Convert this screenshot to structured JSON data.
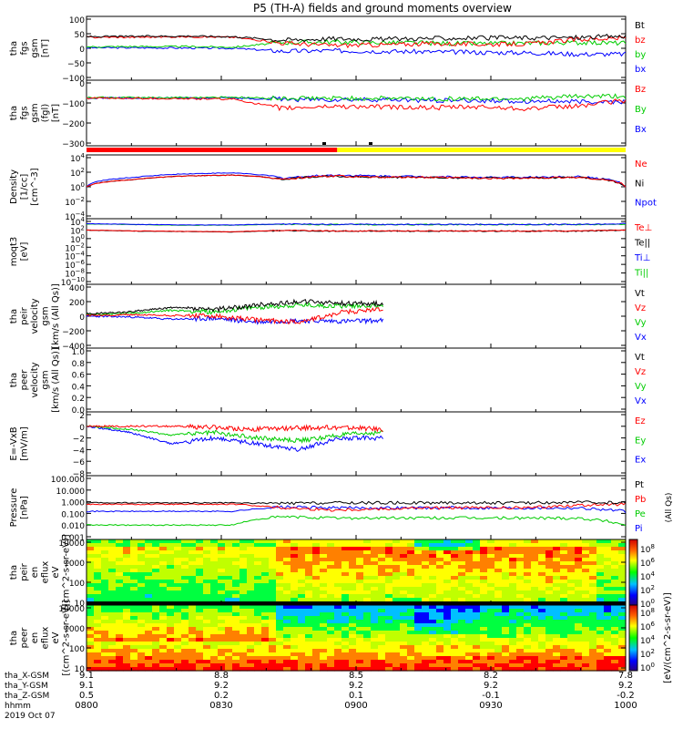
{
  "title": "P5 (TH-A) fields and ground moments overview",
  "colors": {
    "black": "#000000",
    "red": "#ff0000",
    "green": "#00cc00",
    "blue": "#0000ff",
    "yellow": "#ffff00"
  },
  "bars": {
    "red_fraction": 0.465
  },
  "x_ticks": [
    {
      "x": "9.1",
      "y": "9.1",
      "z": "0.5",
      "hhmm": "0800"
    },
    {
      "x": "8.8",
      "y": "9.2",
      "z": "0.2",
      "hhmm": "0830"
    },
    {
      "x": "8.5",
      "y": "9.2",
      "z": "0.1",
      "hhmm": "0900"
    },
    {
      "x": "8.2",
      "y": "9.2",
      "z": "-0.1",
      "hhmm": "0930"
    },
    {
      "x": "7.8",
      "y": "9.2",
      "z": "-0.2",
      "hhmm": "1000"
    }
  ],
  "x_axis_labels": [
    "tha_X-GSM",
    "tha_Y-GSM",
    "tha_Z-GSM",
    "hhmm",
    "2019 Oct 07"
  ],
  "colorbar": {
    "label": "[eV/(cm^2-s-sr-eV)]",
    "top_labels": [
      "10^8",
      "10^6",
      "10^4",
      "10^2",
      "10^0"
    ],
    "bottom_labels": [
      "10^8",
      "10^6",
      "10^4",
      "10^2",
      "10^0"
    ]
  },
  "chart_data": [
    {
      "type": "line",
      "ylabel": [
        "tha",
        "fgs",
        "gsm",
        "[nT]"
      ],
      "ylim": [
        -100,
        100
      ],
      "yticks": [
        "100",
        "50",
        "0",
        "−50",
        "−100"
      ],
      "legend": [
        "Bt",
        "bz",
        "by",
        "bx"
      ],
      "series": [
        {
          "name": "Bt",
          "values": [
            40,
            41,
            42,
            40,
            28,
            33,
            31,
            34,
            35,
            36,
            37,
            42
          ]
        },
        {
          "name": "bz",
          "values": [
            38,
            38,
            40,
            38,
            18,
            10,
            12,
            16,
            14,
            15,
            30,
            35
          ]
        },
        {
          "name": "by",
          "values": [
            5,
            6,
            6,
            4,
            20,
            22,
            20,
            18,
            16,
            18,
            20,
            18
          ]
        },
        {
          "name": "bx",
          "values": [
            2,
            2,
            1,
            0,
            -10,
            -8,
            -10,
            -12,
            -14,
            -15,
            -20,
            -20
          ]
        }
      ]
    },
    {
      "type": "line",
      "ylabel": [
        "tha",
        "fgs",
        "gsm",
        "(fgl)",
        "[nT]"
      ],
      "ylim": [
        -300,
        100
      ],
      "yticks": [
        "0",
        "−100",
        "−200",
        "−300"
      ],
      "legend": [
        "Bz",
        "By",
        "Bx"
      ],
      "series": [
        {
          "name": "Bz",
          "values": [
            -2,
            -2,
            -5,
            -8,
            -70,
            -55,
            -60,
            -65,
            -60,
            -70,
            -55,
            -15
          ]
        },
        {
          "name": "By",
          "values": [
            2,
            2,
            3,
            5,
            -5,
            -2,
            -3,
            -5,
            -5,
            -4,
            10,
            10
          ]
        },
        {
          "name": "Bx",
          "values": [
            0,
            0,
            0,
            0,
            -10,
            -12,
            -12,
            -15,
            -18,
            -20,
            -25,
            -25
          ]
        }
      ]
    },
    {
      "type": "line",
      "ylabel": [
        "Density",
        "[1/cc]",
        "[cm^-3]"
      ],
      "yscale": "log",
      "yticks": [
        "10^4",
        "10^2",
        "10^0",
        "10^-2",
        "10^-4"
      ],
      "legend": [
        "Ne",
        "Ni",
        "Npot"
      ],
      "series": [
        {
          "name": "Ne",
          "values": [
            1,
            10,
            30,
            40,
            10,
            30,
            20,
            20,
            15,
            15,
            20,
            1
          ]
        },
        {
          "name": "Ni",
          "values": [
            1,
            10,
            30,
            40,
            10,
            30,
            20,
            20,
            15,
            15,
            20,
            1
          ]
        },
        {
          "name": "Npot",
          "values": [
            1,
            20,
            60,
            80,
            15,
            40,
            30,
            25,
            20,
            20,
            25,
            1
          ]
        }
      ]
    },
    {
      "type": "line",
      "ylabel": [
        "moqt3",
        "[eV]"
      ],
      "yscale": "log",
      "yticks": [
        "10^4",
        "10^2",
        "10^0",
        "10^-2",
        "10^-4",
        "10^-6",
        "10^-8",
        "10^-10"
      ],
      "legend": [
        "Te⊥",
        "Te||",
        "Ti⊥",
        "Ti||"
      ],
      "series": [
        {
          "name": "Te⊥",
          "values": [
            100,
            60,
            50,
            40,
            80,
            60,
            60,
            60,
            60,
            60,
            60,
            100
          ]
        },
        {
          "name": "Te||",
          "values": [
            90,
            55,
            45,
            35,
            70,
            55,
            55,
            55,
            55,
            55,
            55,
            90
          ]
        },
        {
          "name": "Ti⊥",
          "values": [
            3000,
            2000,
            1500,
            1500,
            2500,
            2000,
            2000,
            2000,
            2000,
            2000,
            2000,
            3000
          ]
        },
        {
          "name": "Ti||",
          "values": [
            2500,
            1800,
            1300,
            1300,
            2200,
            1800,
            1800,
            1800,
            1800,
            1800,
            1800,
            2500
          ]
        }
      ]
    },
    {
      "type": "line",
      "ylabel": [
        "tha",
        "peir",
        "velocity",
        "gsm",
        "[km/s (All Qs)]"
      ],
      "ylim": [
        -400,
        400
      ],
      "yticks": [
        "400",
        "200",
        "0",
        "−200",
        "−400"
      ],
      "legend": [
        "Vt",
        "Vz",
        "Vy",
        "Vx"
      ],
      "series": [
        {
          "name": "Vt",
          "values": [
            30,
            60,
            120,
            90,
            150,
            200,
            180,
            170
          ]
        },
        {
          "name": "Vz",
          "values": [
            10,
            20,
            10,
            0,
            -50,
            -80,
            50,
            100
          ]
        },
        {
          "name": "Vy",
          "values": [
            20,
            40,
            80,
            60,
            120,
            150,
            140,
            150
          ]
        },
        {
          "name": "Vx",
          "values": [
            0,
            -10,
            -40,
            -30,
            -80,
            -60,
            -70,
            -60
          ]
        }
      ]
    },
    {
      "type": "line",
      "ylabel": [
        "tha",
        "peer",
        "velocity",
        "gsm",
        "[km/s (All Qs)]"
      ],
      "ylim": [
        0,
        1
      ],
      "yticks": [
        "1.0",
        "0.8",
        "0.6",
        "0.4",
        "0.2",
        "0.0"
      ],
      "legend": [
        "Vt",
        "Vz",
        "Vy",
        "Vx"
      ],
      "series": []
    },
    {
      "type": "line",
      "ylabel": [
        "E=-VxB",
        "[mV/m]"
      ],
      "ylim": [
        -8,
        2
      ],
      "yticks": [
        "2",
        "0",
        "−2",
        "−4",
        "−6",
        "−8"
      ],
      "legend": [
        "Ez",
        "Ey",
        "Ex"
      ],
      "series": [
        {
          "name": "Ez",
          "values": [
            0,
            0,
            0,
            -0.2,
            -0.5,
            -0.3,
            -0.2,
            -0.5
          ]
        },
        {
          "name": "Ey",
          "values": [
            0,
            -0.5,
            -1.5,
            -1,
            -2,
            -2.5,
            -1.5,
            -1
          ]
        },
        {
          "name": "Ex",
          "values": [
            0,
            -1,
            -3,
            -2,
            -3,
            -4,
            -2,
            -2
          ]
        }
      ]
    },
    {
      "type": "line",
      "ylabel": [
        "Pressure",
        "[nPa]"
      ],
      "yscale": "log",
      "ylim": [
        0.001,
        100
      ],
      "yticks": [
        "100.000",
        "10.000",
        "1.000",
        "0.100",
        "0.010",
        "0.001"
      ],
      "legend": [
        "Pt",
        "Pb",
        "Pe",
        "Pi"
      ],
      "extra_right_label": "(All Qs)",
      "series": [
        {
          "name": "Pt",
          "values": [
            0.8,
            0.8,
            0.8,
            0.8,
            0.7,
            0.8,
            0.8,
            0.8,
            0.8,
            0.8,
            0.9,
            0.8
          ]
        },
        {
          "name": "Pb",
          "values": [
            0.6,
            0.6,
            0.6,
            0.6,
            0.3,
            0.2,
            0.25,
            0.3,
            0.3,
            0.3,
            0.5,
            0.6
          ]
        },
        {
          "name": "Pe",
          "values": [
            0.01,
            0.01,
            0.01,
            0.01,
            0.05,
            0.04,
            0.04,
            0.04,
            0.04,
            0.04,
            0.04,
            0.01
          ]
        },
        {
          "name": "Pi",
          "values": [
            0.15,
            0.15,
            0.15,
            0.15,
            0.35,
            0.3,
            0.3,
            0.3,
            0.3,
            0.3,
            0.3,
            0.15
          ]
        }
      ]
    },
    {
      "type": "heatmap",
      "ylabel": [
        "tha",
        "peir",
        "en",
        "eflux",
        "eV",
        "[(cm^2-s-sr-eV)]"
      ],
      "yscale": "log",
      "yticks": [
        "10000",
        "1000",
        "100",
        "10"
      ]
    },
    {
      "type": "heatmap",
      "ylabel": [
        "tha",
        "peer",
        "en",
        "eflux",
        "eV",
        "[(cm^2-s-sr-eV)]"
      ],
      "yscale": "log",
      "yticks": [
        "10000",
        "1000",
        "100",
        "10"
      ]
    }
  ]
}
